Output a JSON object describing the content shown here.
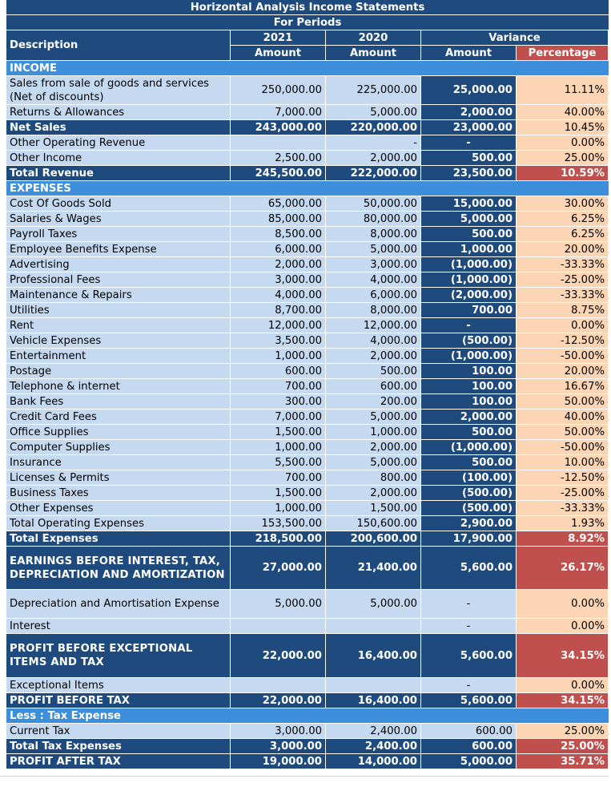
{
  "header": {
    "title": "Horizontal Analysis Income Statements",
    "subtitle": "For Periods",
    "col_desc": "Description",
    "col_2021": "2021",
    "col_2020": "2020",
    "col_variance": "Variance",
    "sub_amount_2021": "Amount",
    "sub_amount_2020": "Amount",
    "sub_var_amount": "Amount",
    "sub_var_pct": "Percentage"
  },
  "rows": [
    {
      "type": "section",
      "label": "INCOME",
      "h": 19
    },
    {
      "type": "item",
      "label": "Sales from sale of goods and services (Net of discounts)",
      "a2021": "250,000.00",
      "a2020": "225,000.00",
      "var": "25,000.00",
      "pct": "11.11%",
      "h": 36
    },
    {
      "type": "item",
      "label": "Returns & Allowances",
      "a2021": "7,000.00",
      "a2020": "5,000.00",
      "var": "2,000.00",
      "pct": "40.00%",
      "h": 19
    },
    {
      "type": "total",
      "label": "Net Sales",
      "a2021": "243,000.00",
      "a2020": "220,000.00",
      "var": "23,000.00",
      "pct": "10.45%",
      "h": 19
    },
    {
      "type": "item",
      "label": "Other Operating Revenue",
      "a2021": "",
      "a2020": "-",
      "var": "-",
      "pct": "0.00%",
      "h": 19
    },
    {
      "type": "item",
      "label": "Other Income",
      "a2021": "2,500.00",
      "a2020": "2,000.00",
      "var": "500.00",
      "pct": "25.00%",
      "h": 19
    },
    {
      "type": "total-hot",
      "label": "Total Revenue",
      "a2021": "245,500.00",
      "a2020": "222,000.00",
      "var": "23,500.00",
      "pct": "10.59%",
      "h": 19
    },
    {
      "type": "section",
      "label": "EXPENSES",
      "h": 19
    },
    {
      "type": "item",
      "label": "Cost Of Goods Sold",
      "a2021": "65,000.00",
      "a2020": "50,000.00",
      "var": "15,000.00",
      "pct": "30.00%",
      "h": 19
    },
    {
      "type": "item",
      "label": "Salaries & Wages",
      "a2021": "85,000.00",
      "a2020": "80,000.00",
      "var": "5,000.00",
      "pct": "6.25%",
      "h": 19
    },
    {
      "type": "item",
      "label": "Payroll Taxes",
      "a2021": "8,500.00",
      "a2020": "8,000.00",
      "var": "500.00",
      "pct": "6.25%",
      "h": 19
    },
    {
      "type": "item",
      "label": "Employee Benefits Expense",
      "a2021": "6,000.00",
      "a2020": "5,000.00",
      "var": "1,000.00",
      "pct": "20.00%",
      "h": 19
    },
    {
      "type": "item",
      "label": "Advertising",
      "a2021": "2,000.00",
      "a2020": "3,000.00",
      "var": "(1,000.00)",
      "pct": "-33.33%",
      "h": 19
    },
    {
      "type": "item",
      "label": "Professional Fees",
      "a2021": "3,000.00",
      "a2020": "4,000.00",
      "var": "(1,000.00)",
      "pct": "-25.00%",
      "h": 19
    },
    {
      "type": "item",
      "label": "Maintenance & Repairs",
      "a2021": "4,000.00",
      "a2020": "6,000.00",
      "var": "(2,000.00)",
      "pct": "-33.33%",
      "h": 19
    },
    {
      "type": "item",
      "label": "Utilities",
      "a2021": "8,700.00",
      "a2020": "8,000.00",
      "var": "700.00",
      "pct": "8.75%",
      "h": 19
    },
    {
      "type": "item",
      "label": "Rent",
      "a2021": "12,000.00",
      "a2020": "12,000.00",
      "var": "-",
      "pct": "0.00%",
      "h": 19
    },
    {
      "type": "item",
      "label": "Vehicle Expenses",
      "a2021": "3,500.00",
      "a2020": "4,000.00",
      "var": "(500.00)",
      "pct": "-12.50%",
      "h": 19
    },
    {
      "type": "item",
      "label": "Entertainment",
      "a2021": "1,000.00",
      "a2020": "2,000.00",
      "var": "(1,000.00)",
      "pct": "-50.00%",
      "h": 19
    },
    {
      "type": "item",
      "label": "Postage",
      "a2021": "600.00",
      "a2020": "500.00",
      "var": "100.00",
      "pct": "20.00%",
      "h": 19
    },
    {
      "type": "item",
      "label": "Telephone & internet",
      "a2021": "700.00",
      "a2020": "600.00",
      "var": "100.00",
      "pct": "16.67%",
      "h": 19
    },
    {
      "type": "item",
      "label": "Bank Fees",
      "a2021": "300.00",
      "a2020": "200.00",
      "var": "100.00",
      "pct": "50.00%",
      "h": 19
    },
    {
      "type": "item",
      "label": "Credit Card Fees",
      "a2021": "7,000.00",
      "a2020": "5,000.00",
      "var": "2,000.00",
      "pct": "40.00%",
      "h": 19
    },
    {
      "type": "item",
      "label": "Office Supplies",
      "a2021": "1,500.00",
      "a2020": "1,000.00",
      "var": "500.00",
      "pct": "50.00%",
      "h": 19
    },
    {
      "type": "item",
      "label": "Computer Supplies",
      "a2021": "1,000.00",
      "a2020": "2,000.00",
      "var": "(1,000.00)",
      "pct": "-50.00%",
      "h": 19
    },
    {
      "type": "item",
      "label": "Insurance",
      "a2021": "5,500.00",
      "a2020": "5,000.00",
      "var": "500.00",
      "pct": "10.00%",
      "h": 19
    },
    {
      "type": "item",
      "label": "Licenses & Permits",
      "a2021": "700.00",
      "a2020": "800.00",
      "var": "(100.00)",
      "pct": "-12.50%",
      "h": 19
    },
    {
      "type": "item",
      "label": "Business Taxes",
      "a2021": "1,500.00",
      "a2020": "2,000.00",
      "var": "(500.00)",
      "pct": "-25.00%",
      "h": 19
    },
    {
      "type": "item",
      "label": "Other Expenses",
      "a2021": "1,000.00",
      "a2020": "1,500.00",
      "var": "(500.00)",
      "pct": "-33.33%",
      "h": 19
    },
    {
      "type": "item",
      "label": "Total  Operating Expenses",
      "a2021": "153,500.00",
      "a2020": "150,600.00",
      "var": "2,900.00",
      "pct": "1.93%",
      "h": 19
    },
    {
      "type": "total-hot",
      "label": "Total Expenses",
      "a2021": "218,500.00",
      "a2020": "200,600.00",
      "var": "17,900.00",
      "pct": "8.92%",
      "h": 19
    },
    {
      "type": "big",
      "label": "EARNINGS BEFORE INTEREST, TAX, DEPRECIATION AND AMORTIZATION",
      "a2021": "27,000.00",
      "a2020": "21,400.00",
      "var": "5,600.00",
      "pct": "26.17%",
      "h": 54
    },
    {
      "type": "plain",
      "label": "Depreciation and Amortisation Expense",
      "a2021": "5,000.00",
      "a2020": "5,000.00",
      "var": "-",
      "pct": "0.00%",
      "h": 36
    },
    {
      "type": "plain",
      "label": "Interest",
      "a2021": "",
      "a2020": "",
      "var": "-",
      "pct": "0.00%",
      "h": 19
    },
    {
      "type": "big",
      "label": "PROFIT BEFORE EXCEPTIONAL ITEMS AND TAX",
      "a2021": "22,000.00",
      "a2020": "16,400.00",
      "var": "5,600.00",
      "pct": "34.15%",
      "h": 55
    },
    {
      "type": "plain",
      "label": "Exceptional Items",
      "a2021": "",
      "a2020": "",
      "var": "-",
      "pct": "0.00%",
      "h": 19
    },
    {
      "type": "total-hot",
      "label": "PROFIT BEFORE TAX",
      "a2021": "22,000.00",
      "a2020": "16,400.00",
      "var": "5,600.00",
      "pct": "34.15%",
      "h": 19
    },
    {
      "type": "section",
      "label": "Less : Tax Expense",
      "h": 19
    },
    {
      "type": "plain",
      "label": "Current Tax",
      "a2021": "3,000.00",
      "a2020": "2,400.00",
      "var": "600.00",
      "pct": "25.00%",
      "h": 19
    },
    {
      "type": "total-hot",
      "label": "Total Tax Expenses",
      "a2021": "3,000.00",
      "a2020": "2,400.00",
      "var": "600.00",
      "pct": "25.00%",
      "h": 19
    },
    {
      "type": "total-hot",
      "label": "PROFIT AFTER TAX",
      "a2021": "19,000.00",
      "a2020": "14,000.00",
      "var": "5,000.00",
      "pct": "35.71%",
      "h": 19
    }
  ]
}
